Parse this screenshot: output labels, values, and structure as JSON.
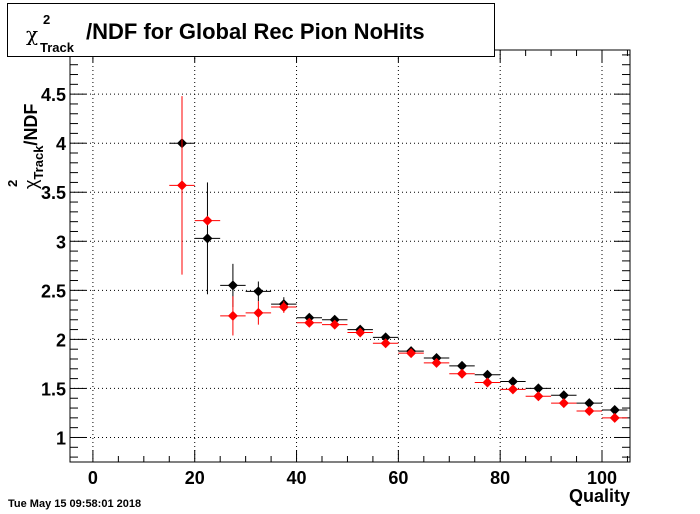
{
  "chart_data": {
    "type": "scatter",
    "title": "/NDF for Global Rec Pion NoHits",
    "title_symbol": "χ",
    "title_superscript": "2",
    "title_subscript": "Track",
    "ylabel": "/NDF",
    "ylabel_symbol": "χ",
    "ylabel_superscript": "2",
    "ylabel_subscript": "Track",
    "xlabel": "Quality",
    "xlim": [
      -4.5,
      105.5
    ],
    "ylim": [
      0.75,
      4.95
    ],
    "x_ticks": [
      0,
      20,
      40,
      60,
      80,
      100
    ],
    "y_ticks": [
      1,
      1.5,
      2,
      2.5,
      3,
      3.5,
      4,
      4.5
    ],
    "y_tick_labels": [
      "1",
      "1.5",
      "2",
      "2.5",
      "3",
      "3.5",
      "4",
      "4.5"
    ],
    "grid": true,
    "series": [
      {
        "color": "#000000",
        "x": [
          17.5,
          22.5,
          27.5,
          32.5,
          37.5,
          42.5,
          47.5,
          52.5,
          57.5,
          62.5,
          67.5,
          72.5,
          77.5,
          82.5,
          87.5,
          92.5,
          97.5,
          102.5
        ],
        "y": [
          4.0,
          3.03,
          2.55,
          2.49,
          2.36,
          2.22,
          2.2,
          2.1,
          2.02,
          1.88,
          1.81,
          1.73,
          1.64,
          1.57,
          1.5,
          1.43,
          1.35,
          1.28
        ],
        "yerr": [
          0,
          0.57,
          0.22,
          0.1,
          0.07,
          0.04,
          0.03,
          0.03,
          0.02,
          0.02,
          0.02,
          0.02,
          0.02,
          0.02,
          0.02,
          0.02,
          0.02,
          0.02
        ],
        "xerr": 2.5
      },
      {
        "color": "#ff0000",
        "x": [
          17.5,
          22.5,
          27.5,
          32.5,
          37.5,
          42.5,
          47.5,
          52.5,
          57.5,
          62.5,
          67.5,
          72.5,
          77.5,
          82.5,
          87.5,
          92.5,
          97.5,
          102.5
        ],
        "y": [
          3.57,
          3.21,
          2.24,
          2.27,
          2.33,
          2.17,
          2.15,
          2.07,
          1.96,
          1.86,
          1.76,
          1.65,
          1.56,
          1.49,
          1.42,
          1.35,
          1.27,
          1.2
        ],
        "yerr": [
          0.91,
          0.0,
          0.2,
          0.12,
          0.06,
          0.04,
          0.03,
          0.03,
          0.02,
          0.02,
          0.02,
          0.02,
          0.02,
          0.02,
          0.02,
          0.02,
          0.02,
          0.02
        ],
        "xerr": 2.5
      }
    ]
  },
  "timestamp": "Tue May 15 09:58:01 2018"
}
